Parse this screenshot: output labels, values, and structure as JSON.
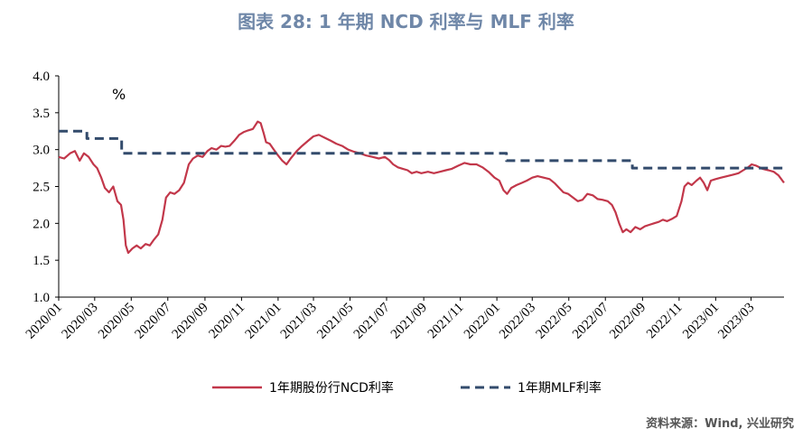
{
  "chart_data": {
    "type": "line",
    "title": "图表 28: 1 年期 NCD 利率与 MLF 利率",
    "unit": "%",
    "ylim": [
      1.0,
      4.0
    ],
    "yticks": [
      "1.0",
      "1.5",
      "2.0",
      "2.5",
      "3.0",
      "3.5",
      "4.0"
    ],
    "xticks": [
      "2020/01",
      "2020/03",
      "2020/05",
      "2020/07",
      "2020/09",
      "2020/11",
      "2021/01",
      "2021/03",
      "2021/05",
      "2021/07",
      "2021/09",
      "2021/11",
      "2022/01",
      "2022/03",
      "2022/05",
      "2022/07",
      "2022/09",
      "2022/11",
      "2023/01",
      "2023/03"
    ],
    "x_domain": [
      "2020/01/01",
      "2023/04/25"
    ],
    "grid": false,
    "legend_position": "bottom",
    "series": [
      {
        "name": "1年期股份行NCD利率",
        "color": "#c2374a",
        "style": "solid",
        "points": [
          [
            "2020/01/01",
            2.9
          ],
          [
            "2020/01/10",
            2.88
          ],
          [
            "2020/01/20",
            2.95
          ],
          [
            "2020/01/28",
            2.98
          ],
          [
            "2020/02/05",
            2.85
          ],
          [
            "2020/02/12",
            2.95
          ],
          [
            "2020/02/20",
            2.9
          ],
          [
            "2020/02/28",
            2.8
          ],
          [
            "2020/03/05",
            2.75
          ],
          [
            "2020/03/12",
            2.62
          ],
          [
            "2020/03/18",
            2.48
          ],
          [
            "2020/03/25",
            2.42
          ],
          [
            "2020/04/01",
            2.5
          ],
          [
            "2020/04/08",
            2.3
          ],
          [
            "2020/04/14",
            2.25
          ],
          [
            "2020/04/18",
            2.05
          ],
          [
            "2020/04/22",
            1.7
          ],
          [
            "2020/04/26",
            1.6
          ],
          [
            "2020/05/03",
            1.66
          ],
          [
            "2020/05/10",
            1.7
          ],
          [
            "2020/05/17",
            1.66
          ],
          [
            "2020/05/25",
            1.72
          ],
          [
            "2020/06/01",
            1.7
          ],
          [
            "2020/06/08",
            1.78
          ],
          [
            "2020/06/15",
            1.85
          ],
          [
            "2020/06/22",
            2.05
          ],
          [
            "2020/06/28",
            2.35
          ],
          [
            "2020/07/05",
            2.42
          ],
          [
            "2020/07/12",
            2.4
          ],
          [
            "2020/07/20",
            2.45
          ],
          [
            "2020/07/28",
            2.55
          ],
          [
            "2020/08/05",
            2.8
          ],
          [
            "2020/08/12",
            2.88
          ],
          [
            "2020/08/20",
            2.92
          ],
          [
            "2020/08/28",
            2.9
          ],
          [
            "2020/09/05",
            2.98
          ],
          [
            "2020/09/12",
            3.02
          ],
          [
            "2020/09/20",
            3.0
          ],
          [
            "2020/09/28",
            3.05
          ],
          [
            "2020/10/05",
            3.04
          ],
          [
            "2020/10/12",
            3.05
          ],
          [
            "2020/10/20",
            3.12
          ],
          [
            "2020/10/28",
            3.2
          ],
          [
            "2020/11/05",
            3.24
          ],
          [
            "2020/11/12",
            3.26
          ],
          [
            "2020/11/20",
            3.28
          ],
          [
            "2020/11/28",
            3.38
          ],
          [
            "2020/12/03",
            3.36
          ],
          [
            "2020/12/08",
            3.22
          ],
          [
            "2020/12/12",
            3.1
          ],
          [
            "2020/12/18",
            3.08
          ],
          [
            "2020/12/25",
            3.0
          ],
          [
            "2021/01/01",
            2.92
          ],
          [
            "2021/01/08",
            2.85
          ],
          [
            "2021/01/15",
            2.8
          ],
          [
            "2021/01/22",
            2.88
          ],
          [
            "2021/02/01",
            2.98
          ],
          [
            "2021/02/10",
            3.05
          ],
          [
            "2021/02/20",
            3.12
          ],
          [
            "2021/03/01",
            3.18
          ],
          [
            "2021/03/10",
            3.2
          ],
          [
            "2021/03/20",
            3.16
          ],
          [
            "2021/03/30",
            3.12
          ],
          [
            "2021/04/08",
            3.08
          ],
          [
            "2021/04/18",
            3.05
          ],
          [
            "2021/04/28",
            3.0
          ],
          [
            "2021/05/08",
            2.97
          ],
          [
            "2021/05/18",
            2.95
          ],
          [
            "2021/05/28",
            2.92
          ],
          [
            "2021/06/08",
            2.9
          ],
          [
            "2021/06/18",
            2.88
          ],
          [
            "2021/06/28",
            2.9
          ],
          [
            "2021/07/05",
            2.86
          ],
          [
            "2021/07/12",
            2.8
          ],
          [
            "2021/07/20",
            2.76
          ],
          [
            "2021/07/28",
            2.74
          ],
          [
            "2021/08/05",
            2.72
          ],
          [
            "2021/08/12",
            2.68
          ],
          [
            "2021/08/20",
            2.7
          ],
          [
            "2021/08/28",
            2.68
          ],
          [
            "2021/09/08",
            2.7
          ],
          [
            "2021/09/18",
            2.68
          ],
          [
            "2021/09/28",
            2.7
          ],
          [
            "2021/10/08",
            2.72
          ],
          [
            "2021/10/18",
            2.74
          ],
          [
            "2021/10/28",
            2.78
          ],
          [
            "2021/11/08",
            2.82
          ],
          [
            "2021/11/18",
            2.8
          ],
          [
            "2021/11/28",
            2.8
          ],
          [
            "2021/12/08",
            2.76
          ],
          [
            "2021/12/18",
            2.7
          ],
          [
            "2021/12/28",
            2.62
          ],
          [
            "2022/01/05",
            2.58
          ],
          [
            "2022/01/12",
            2.45
          ],
          [
            "2022/01/18",
            2.4
          ],
          [
            "2022/01/25",
            2.48
          ],
          [
            "2022/02/03",
            2.52
          ],
          [
            "2022/02/12",
            2.55
          ],
          [
            "2022/02/20",
            2.58
          ],
          [
            "2022/03/01",
            2.62
          ],
          [
            "2022/03/10",
            2.64
          ],
          [
            "2022/03/20",
            2.62
          ],
          [
            "2022/03/30",
            2.6
          ],
          [
            "2022/04/08",
            2.54
          ],
          [
            "2022/04/15",
            2.48
          ],
          [
            "2022/04/22",
            2.42
          ],
          [
            "2022/04/30",
            2.4
          ],
          [
            "2022/05/08",
            2.35
          ],
          [
            "2022/05/16",
            2.3
          ],
          [
            "2022/05/24",
            2.32
          ],
          [
            "2022/06/01",
            2.4
          ],
          [
            "2022/06/10",
            2.38
          ],
          [
            "2022/06/18",
            2.33
          ],
          [
            "2022/06/26",
            2.32
          ],
          [
            "2022/07/05",
            2.3
          ],
          [
            "2022/07/12",
            2.25
          ],
          [
            "2022/07/18",
            2.15
          ],
          [
            "2022/07/24",
            2.0
          ],
          [
            "2022/07/30",
            1.88
          ],
          [
            "2022/08/05",
            1.92
          ],
          [
            "2022/08/12",
            1.88
          ],
          [
            "2022/08/20",
            1.95
          ],
          [
            "2022/08/28",
            1.92
          ],
          [
            "2022/09/05",
            1.96
          ],
          [
            "2022/09/12",
            1.98
          ],
          [
            "2022/09/20",
            2.0
          ],
          [
            "2022/09/28",
            2.02
          ],
          [
            "2022/10/05",
            2.05
          ],
          [
            "2022/10/12",
            2.03
          ],
          [
            "2022/10/20",
            2.06
          ],
          [
            "2022/10/28",
            2.1
          ],
          [
            "2022/11/05",
            2.3
          ],
          [
            "2022/11/10",
            2.5
          ],
          [
            "2022/11/16",
            2.55
          ],
          [
            "2022/11/22",
            2.52
          ],
          [
            "2022/11/30",
            2.58
          ],
          [
            "2022/12/06",
            2.62
          ],
          [
            "2022/12/12",
            2.55
          ],
          [
            "2022/12/18",
            2.45
          ],
          [
            "2022/12/24",
            2.58
          ],
          [
            "2023/01/01",
            2.6
          ],
          [
            "2023/01/10",
            2.62
          ],
          [
            "2023/01/20",
            2.64
          ],
          [
            "2023/01/30",
            2.66
          ],
          [
            "2023/02/08",
            2.68
          ],
          [
            "2023/02/16",
            2.72
          ],
          [
            "2023/02/24",
            2.76
          ],
          [
            "2023/03/02",
            2.8
          ],
          [
            "2023/03/10",
            2.78
          ],
          [
            "2023/03/20",
            2.74
          ],
          [
            "2023/03/30",
            2.72
          ],
          [
            "2023/04/08",
            2.7
          ],
          [
            "2023/04/16",
            2.65
          ],
          [
            "2023/04/25",
            2.55
          ]
        ]
      },
      {
        "name": "1年期MLF利率",
        "color": "#334b6c",
        "style": "dashed",
        "points": [
          [
            "2020/01/01",
            3.25
          ],
          [
            "2020/02/17",
            3.25
          ],
          [
            "2020/02/17",
            3.15
          ],
          [
            "2020/04/15",
            3.15
          ],
          [
            "2020/04/15",
            2.95
          ],
          [
            "2022/01/17",
            2.95
          ],
          [
            "2022/01/17",
            2.85
          ],
          [
            "2022/08/15",
            2.85
          ],
          [
            "2022/08/15",
            2.75
          ],
          [
            "2023/04/25",
            2.75
          ]
        ]
      }
    ]
  },
  "footer": {
    "source": "资料来源：Wind, 兴业研究"
  }
}
